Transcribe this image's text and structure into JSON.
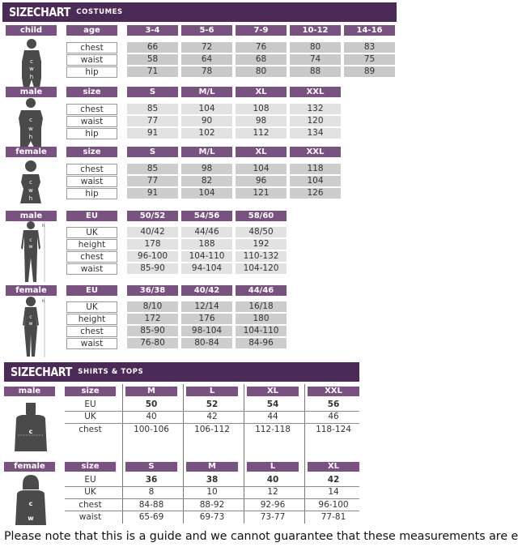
{
  "colors": {
    "title_bar": "#4b2a57",
    "header_cell": "#7a5282",
    "figure": "#4a4a4a"
  },
  "costumes": {
    "title_big": "SIZECHART",
    "title_small": "costumes",
    "blocks": [
      {
        "group": "child",
        "key": "age",
        "cols": [
          "3-4",
          "5-6",
          "7-9",
          "10-12",
          "14-16"
        ],
        "cell_color": "#c9c9c9",
        "figure": "child",
        "rows": [
          {
            "label": "chest",
            "values": [
              "66",
              "72",
              "76",
              "80",
              "83"
            ]
          },
          {
            "label": "waist",
            "values": [
              "58",
              "64",
              "68",
              "74",
              "75"
            ]
          },
          {
            "label": "hip",
            "values": [
              "71",
              "78",
              "80",
              "88",
              "89"
            ]
          }
        ]
      },
      {
        "group": "male",
        "key": "size",
        "cols": [
          "S",
          "M/L",
          "XL",
          "XXL"
        ],
        "cell_color": "#e2e2e2",
        "figure": "male-torso",
        "rows": [
          {
            "label": "chest",
            "values": [
              "85",
              "104",
              "108",
              "132"
            ]
          },
          {
            "label": "waist",
            "values": [
              "77",
              "90",
              "98",
              "120"
            ]
          },
          {
            "label": "hip",
            "values": [
              "91",
              "102",
              "112",
              "134"
            ]
          }
        ]
      },
      {
        "group": "female",
        "key": "size",
        "cols": [
          "S",
          "M/L",
          "XL",
          "XXL"
        ],
        "cell_color": "#cdcdcd",
        "figure": "female-torso",
        "rows": [
          {
            "label": "chest",
            "values": [
              "85",
              "98",
              "104",
              "118"
            ]
          },
          {
            "label": "waist",
            "values": [
              "77",
              "82",
              "96",
              "104"
            ]
          },
          {
            "label": "hip",
            "values": [
              "91",
              "104",
              "121",
              "126"
            ]
          }
        ]
      },
      {
        "group": "male",
        "key": "EU",
        "cols": [
          "50/52",
          "54/56",
          "58/60"
        ],
        "cell_color": "#e2e2e2",
        "figure": "male-full",
        "rows": [
          {
            "label": "UK",
            "values": [
              "40/42",
              "44/46",
              "48/50"
            ]
          },
          {
            "label": "height",
            "values": [
              "178",
              "188",
              "192"
            ]
          },
          {
            "label": "chest",
            "values": [
              "96-100",
              "104-110",
              "110-132"
            ]
          },
          {
            "label": "waist",
            "values": [
              "85-90",
              "94-104",
              "104-120"
            ]
          }
        ]
      },
      {
        "group": "female",
        "key": "EU",
        "cols": [
          "36/38",
          "40/42",
          "44/46"
        ],
        "cell_color": "#cdcdcd",
        "figure": "female-full",
        "rows": [
          {
            "label": "UK",
            "values": [
              "8/10",
              "12/14",
              "16/18"
            ]
          },
          {
            "label": "height",
            "values": [
              "172",
              "176",
              "180"
            ]
          },
          {
            "label": "chest",
            "values": [
              "85-90",
              "98-104",
              "104-110"
            ]
          },
          {
            "label": "waist",
            "values": [
              "76-80",
              "80-84",
              "84-96"
            ]
          }
        ]
      }
    ]
  },
  "shirts": {
    "title_big": "SIZECHART",
    "title_small": "shirts & tops",
    "blocks": [
      {
        "group": "male",
        "key": "size",
        "cols": [
          "M",
          "L",
          "XL",
          "XXL"
        ],
        "figure": "male-shirt",
        "rows": [
          {
            "label": "EU",
            "bold": true,
            "values": [
              "50",
              "52",
              "54",
              "56"
            ]
          },
          {
            "label": "UK",
            "values": [
              "40",
              "42",
              "44",
              "46"
            ]
          },
          {
            "label": "chest",
            "values": [
              "100-106",
              "106-112",
              "112-118",
              "118-124"
            ]
          }
        ]
      },
      {
        "group": "female",
        "key": "size",
        "cols": [
          "S",
          "M",
          "L",
          "XL"
        ],
        "figure": "female-shirt",
        "rows": [
          {
            "label": "EU",
            "bold": true,
            "values": [
              "36",
              "38",
              "40",
              "42"
            ]
          },
          {
            "label": "UK",
            "values": [
              "8",
              "10",
              "12",
              "14"
            ]
          },
          {
            "label": "chest",
            "values": [
              "84-88",
              "88-92",
              "92-96",
              "96-100"
            ]
          },
          {
            "label": "waist",
            "values": [
              "65-69",
              "69-73",
              "73-77",
              "77-81"
            ]
          }
        ]
      }
    ]
  },
  "footer": "Please note that this is a guide and we cannot guarantee that these measurements are exact"
}
